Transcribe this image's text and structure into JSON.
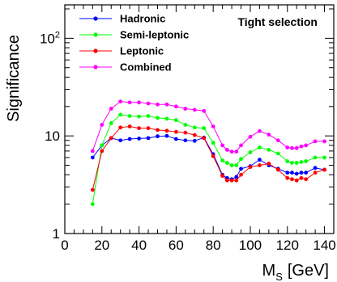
{
  "chart_data": {
    "type": "line",
    "ylabel": "Significance",
    "xlabel_main": "M",
    "xlabel_sub": "S",
    "xlabel_unit": "[GeV]",
    "annotation": "Tight selection",
    "x_scale": "linear",
    "y_scale": "log",
    "xlim": [
      0,
      145
    ],
    "ylim": [
      1,
      220
    ],
    "grid": false,
    "legend_position": "top-left",
    "x_ticks": [
      0,
      20,
      40,
      60,
      80,
      100,
      120,
      140
    ],
    "x_tick_labels": [
      "0",
      "20",
      "40",
      "60",
      "80",
      "100",
      "120",
      "140"
    ],
    "y_major_ticks": [
      1,
      10,
      100
    ],
    "y_tick_labels": [
      "1",
      "10",
      "10²"
    ],
    "x": [
      15,
      20,
      25,
      30,
      35,
      40,
      45,
      50,
      55,
      60,
      65,
      70,
      75,
      80,
      85,
      87.5,
      90,
      92.5,
      95,
      100,
      105,
      110,
      115,
      120,
      122.5,
      125,
      127.5,
      130,
      135,
      140
    ],
    "series": [
      {
        "name": "Hadronic",
        "color": "#0000ff",
        "values": [
          6.0,
          8.0,
          9.5,
          9.0,
          9.3,
          9.4,
          9.5,
          9.9,
          10.0,
          9.3,
          9.0,
          8.9,
          9.6,
          6.5,
          4.0,
          3.7,
          3.6,
          3.8,
          4.6,
          4.9,
          5.7,
          5.0,
          4.6,
          4.2,
          4.2,
          4.1,
          4.2,
          4.2,
          4.7,
          4.5
        ]
      },
      {
        "name": "Semi-leptonic",
        "color": "#00ff00",
        "values": [
          2.0,
          8.0,
          13.5,
          16.5,
          16.0,
          15.8,
          16.0,
          15.3,
          15.0,
          14.5,
          13.0,
          12.2,
          12.0,
          8.5,
          5.6,
          5.3,
          5.0,
          5.0,
          5.8,
          6.8,
          7.6,
          7.2,
          6.6,
          5.5,
          5.3,
          5.3,
          5.4,
          5.5,
          6.0,
          6.0
        ]
      },
      {
        "name": "Leptonic",
        "color": "#ff0000",
        "values": [
          2.8,
          7.0,
          9.5,
          12.2,
          12.5,
          12.0,
          12.0,
          11.5,
          11.3,
          11.0,
          10.8,
          10.2,
          9.5,
          6.2,
          3.9,
          3.5,
          3.5,
          3.5,
          4.0,
          4.8,
          5.0,
          5.2,
          4.5,
          3.7,
          3.6,
          3.5,
          3.7,
          3.6,
          4.2,
          4.5
        ]
      },
      {
        "name": "Combined",
        "color": "#ff00ff",
        "values": [
          7.0,
          13.0,
          19.0,
          22.5,
          22.0,
          22.0,
          21.5,
          21.0,
          21.0,
          20.0,
          19.0,
          18.5,
          18.0,
          12.5,
          8.0,
          7.2,
          6.9,
          6.9,
          8.0,
          9.8,
          11.2,
          10.3,
          9.0,
          7.6,
          7.5,
          7.5,
          7.8,
          8.0,
          8.8,
          8.8
        ]
      }
    ]
  }
}
